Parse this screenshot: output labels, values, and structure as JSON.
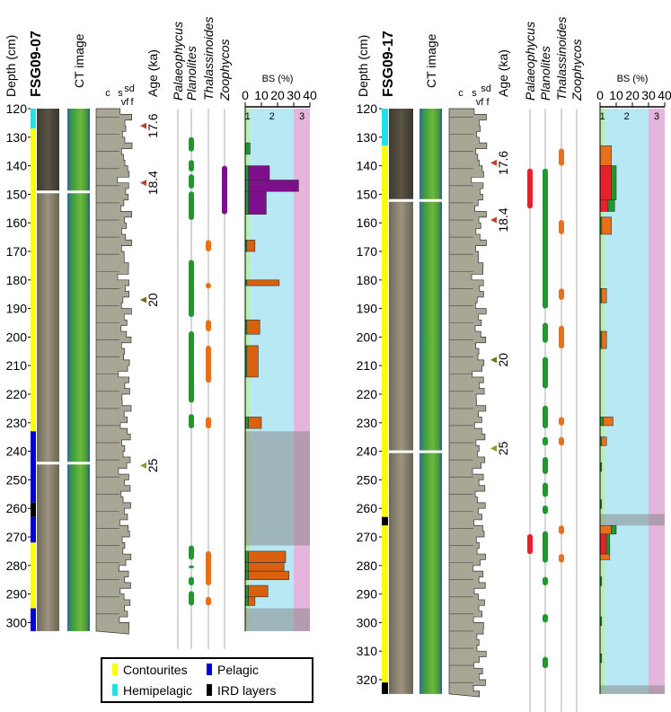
{
  "headers": {
    "depth": "Depth (cm)",
    "ct": "CT image",
    "age": "Age (ka)",
    "bs": "BS (%)",
    "grain": [
      "c",
      "s",
      "sd",
      "vf",
      "f"
    ]
  },
  "ichnotaxa": [
    {
      "name": "Palaeophycus",
      "color": "#e8202a"
    },
    {
      "name": "Planolites",
      "color": "#1e9a2c"
    },
    {
      "name": "Thalassinoides",
      "color": "#e8701a"
    },
    {
      "name": "Zoophycos",
      "color": "#7d0f8c"
    }
  ],
  "legend": [
    {
      "label": "Contourites",
      "color": "#ffff00"
    },
    {
      "label": "Pelagic",
      "color": "#0000dd"
    },
    {
      "label": "Hemipelagic",
      "color": "#22e0e8"
    },
    {
      "label": "IRD layers",
      "color": "#000000"
    }
  ],
  "bs_lim": [
    0,
    40
  ],
  "bs_ticks": [
    0,
    10,
    20,
    30,
    40
  ],
  "zones": [
    {
      "label": "1",
      "from": 0,
      "to": 3,
      "color": "#b6f0b0",
      "text_color": "#1e9a2c"
    },
    {
      "label": "2",
      "from": 3,
      "to": 30,
      "color": "#b8e8f4",
      "text_color": "#1aa0c8"
    },
    {
      "label": "3",
      "from": 30,
      "to": 40,
      "color": "#e4b6dc",
      "text_color": "#7d0f8c"
    }
  ],
  "panels": [
    {
      "core": "FSG09-07",
      "depth_lim": [
        120,
        303
      ],
      "depth_ticks": [
        120,
        130,
        140,
        150,
        160,
        170,
        180,
        190,
        200,
        210,
        220,
        230,
        240,
        250,
        260,
        270,
        280,
        290,
        300
      ],
      "structure": [
        {
          "unit": 2,
          "top": 120,
          "bottom": 127
        },
        {
          "unit": 0,
          "top": 127,
          "bottom": 233
        },
        {
          "unit": 1,
          "top": 233,
          "bottom": 258
        },
        {
          "unit": 3,
          "top": 258,
          "bottom": 263
        },
        {
          "unit": 1,
          "top": 263,
          "bottom": 272
        },
        {
          "unit": 0,
          "top": 272,
          "bottom": 295
        },
        {
          "unit": 1,
          "top": 295,
          "bottom": 303
        }
      ],
      "gaps": [
        149,
        244
      ],
      "ages": [
        {
          "label": "17.6",
          "depth": 126,
          "color": "#b5442a"
        },
        {
          "label": "18.4",
          "depth": 146,
          "color": "#b5442a"
        },
        {
          "label": "20",
          "depth": 187,
          "color": "#7a6a1a"
        },
        {
          "label": "25",
          "depth": 245,
          "color": "#8a9a2a"
        }
      ],
      "ichno": [
        [],
        [
          [
            130,
            135
          ],
          [
            138,
            142
          ],
          [
            143,
            148
          ],
          [
            149,
            159
          ],
          [
            173,
            193
          ],
          [
            198,
            223
          ],
          [
            227,
            232
          ],
          [
            273,
            278
          ],
          [
            280,
            281
          ],
          [
            284,
            287
          ],
          [
            289,
            294
          ]
        ],
        [
          [
            166,
            170
          ],
          [
            181,
            183
          ],
          [
            194,
            198
          ],
          [
            203,
            216
          ],
          [
            228,
            232
          ],
          [
            275,
            287
          ],
          [
            291,
            294
          ]
        ],
        [
          [
            140,
            157
          ]
        ]
      ],
      "gray": [
        [
          233,
          273
        ],
        [
          295,
          303
        ]
      ],
      "bs_bars": [
        {
          "top": 132,
          "bottom": 136,
          "segments": [
            {
              "color": "#1e9a2c",
              "value": 3
            }
          ]
        },
        {
          "top": 140,
          "bottom": 145,
          "segments": [
            {
              "color": "#1e9a2c",
              "value": 2
            },
            {
              "color": "#7d0f8c",
              "value": 13
            }
          ]
        },
        {
          "top": 145,
          "bottom": 149,
          "segments": [
            {
              "color": "#1e9a2c",
              "value": 2
            },
            {
              "color": "#7d0f8c",
              "value": 31
            }
          ]
        },
        {
          "top": 149,
          "bottom": 157,
          "segments": [
            {
              "color": "#1e9a2c",
              "value": 2
            },
            {
              "color": "#7d0f8c",
              "value": 11
            }
          ]
        },
        {
          "top": 166,
          "bottom": 170,
          "segments": [
            {
              "color": "#1e9a2c",
              "value": 1
            },
            {
              "color": "#d9600c",
              "value": 5
            }
          ]
        },
        {
          "top": 180,
          "bottom": 182,
          "segments": [
            {
              "color": "#1e9a2c",
              "value": 1
            },
            {
              "color": "#d9600c",
              "value": 20
            }
          ]
        },
        {
          "top": 194,
          "bottom": 199,
          "segments": [
            {
              "color": "#1e9a2c",
              "value": 1
            },
            {
              "color": "#d9600c",
              "value": 8
            }
          ]
        },
        {
          "top": 203,
          "bottom": 214,
          "segments": [
            {
              "color": "#1e9a2c",
              "value": 1
            },
            {
              "color": "#d9600c",
              "value": 7
            }
          ]
        },
        {
          "top": 228,
          "bottom": 232,
          "segments": [
            {
              "color": "#1e9a2c",
              "value": 2
            },
            {
              "color": "#d9600c",
              "value": 8
            }
          ]
        },
        {
          "top": 275,
          "bottom": 279,
          "segments": [
            {
              "color": "#1e9a2c",
              "value": 2
            },
            {
              "color": "#d9600c",
              "value": 23
            }
          ]
        },
        {
          "top": 279,
          "bottom": 282,
          "segments": [
            {
              "color": "#1e9a2c",
              "value": 2
            },
            {
              "color": "#d9600c",
              "value": 22
            }
          ]
        },
        {
          "top": 282,
          "bottom": 285,
          "segments": [
            {
              "color": "#1e9a2c",
              "value": 2
            },
            {
              "color": "#d9600c",
              "value": 25
            }
          ]
        },
        {
          "top": 287,
          "bottom": 291,
          "segments": [
            {
              "color": "#1e9a2c",
              "value": 2
            },
            {
              "color": "#d9600c",
              "value": 12
            }
          ]
        },
        {
          "top": 291,
          "bottom": 294,
          "segments": [
            {
              "color": "#1e9a2c",
              "value": 2
            },
            {
              "color": "#d9600c",
              "value": 4
            }
          ]
        }
      ]
    },
    {
      "core": "FSG09-17",
      "depth_lim": [
        120,
        325
      ],
      "depth_ticks": [
        120,
        130,
        140,
        150,
        160,
        170,
        180,
        190,
        200,
        210,
        220,
        230,
        240,
        250,
        260,
        270,
        280,
        290,
        300,
        310,
        320
      ],
      "structure": [
        {
          "unit": 2,
          "top": 120,
          "bottom": 133
        },
        {
          "unit": 0,
          "top": 133,
          "bottom": 263
        },
        {
          "unit": 3,
          "top": 263,
          "bottom": 266
        },
        {
          "unit": 0,
          "top": 266,
          "bottom": 321
        },
        {
          "unit": 3,
          "top": 321,
          "bottom": 325
        }
      ],
      "gaps": [
        152,
        240
      ],
      "ages": [
        {
          "label": "17.6",
          "depth": 139,
          "color": "#b5442a"
        },
        {
          "label": "18.4",
          "depth": 159,
          "color": "#b5442a"
        },
        {
          "label": "20",
          "depth": 208,
          "color": "#7a6a1a"
        },
        {
          "label": "25",
          "depth": 239,
          "color": "#8a9a2a"
        }
      ],
      "ichno": [
        [
          [
            141,
            155
          ],
          [
            269,
            276
          ]
        ],
        [
          [
            141,
            190
          ],
          [
            195,
            202
          ],
          [
            207,
            218
          ],
          [
            224,
            232
          ],
          [
            235,
            238
          ],
          [
            242,
            248
          ],
          [
            251,
            256
          ],
          [
            259,
            262
          ],
          [
            268,
            279
          ],
          [
            284,
            287
          ],
          [
            297,
            300
          ],
          [
            312,
            316
          ]
        ],
        [
          [
            134,
            140
          ],
          [
            159,
            164
          ],
          [
            183,
            187
          ],
          [
            196,
            204
          ],
          [
            228,
            231
          ],
          [
            235,
            238
          ],
          [
            266,
            269
          ],
          [
            276,
            279
          ]
        ],
        []
      ],
      "gray": [
        [
          262,
          266
        ],
        [
          322,
          325
        ]
      ],
      "bs_bars": [
        {
          "top": 133,
          "bottom": 140,
          "segments": [
            {
              "color": "#e8701a",
              "value": 7
            }
          ]
        },
        {
          "top": 140,
          "bottom": 152,
          "segments": [
            {
              "color": "#e8202a",
              "value": 7
            },
            {
              "color": "#1e9a2c",
              "value": 3
            }
          ]
        },
        {
          "top": 152,
          "bottom": 156,
          "segments": [
            {
              "color": "#e8202a",
              "value": 5
            },
            {
              "color": "#1e9a2c",
              "value": 4
            }
          ]
        },
        {
          "top": 158,
          "bottom": 164,
          "segments": [
            {
              "color": "#1e9a2c",
              "value": 1
            },
            {
              "color": "#e8701a",
              "value": 6
            }
          ]
        },
        {
          "top": 183,
          "bottom": 188,
          "segments": [
            {
              "color": "#1e9a2c",
              "value": 1
            },
            {
              "color": "#e8701a",
              "value": 3
            }
          ]
        },
        {
          "top": 198,
          "bottom": 204,
          "segments": [
            {
              "color": "#1e9a2c",
              "value": 1
            },
            {
              "color": "#e8701a",
              "value": 3
            }
          ]
        },
        {
          "top": 228,
          "bottom": 231,
          "segments": [
            {
              "color": "#1e9a2c",
              "value": 2
            },
            {
              "color": "#e8701a",
              "value": 6
            }
          ]
        },
        {
          "top": 235,
          "bottom": 238,
          "segments": [
            {
              "color": "#1e9a2c",
              "value": 1
            },
            {
              "color": "#e8701a",
              "value": 3
            }
          ]
        },
        {
          "top": 244,
          "bottom": 247,
          "segments": [
            {
              "color": "#1e9a2c",
              "value": 1
            }
          ]
        },
        {
          "top": 257,
          "bottom": 260,
          "segments": [
            {
              "color": "#1e9a2c",
              "value": 1
            }
          ]
        },
        {
          "top": 266,
          "bottom": 269,
          "segments": [
            {
              "color": "#e8701a",
              "value": 7
            },
            {
              "color": "#1e9a2c",
              "value": 3
            }
          ]
        },
        {
          "top": 269,
          "bottom": 276,
          "segments": [
            {
              "color": "#e8202a",
              "value": 4
            },
            {
              "color": "#1e9a2c",
              "value": 2
            }
          ]
        },
        {
          "top": 276,
          "bottom": 278,
          "segments": [
            {
              "color": "#e8701a",
              "value": 6
            }
          ]
        },
        {
          "top": 284,
          "bottom": 287,
          "segments": [
            {
              "color": "#1e9a2c",
              "value": 1
            }
          ]
        },
        {
          "top": 298,
          "bottom": 301,
          "segments": [
            {
              "color": "#1e9a2c",
              "value": 1
            }
          ]
        },
        {
          "top": 311,
          "bottom": 314,
          "segments": [
            {
              "color": "#1e9a2c",
              "value": 1
            }
          ]
        }
      ]
    }
  ]
}
